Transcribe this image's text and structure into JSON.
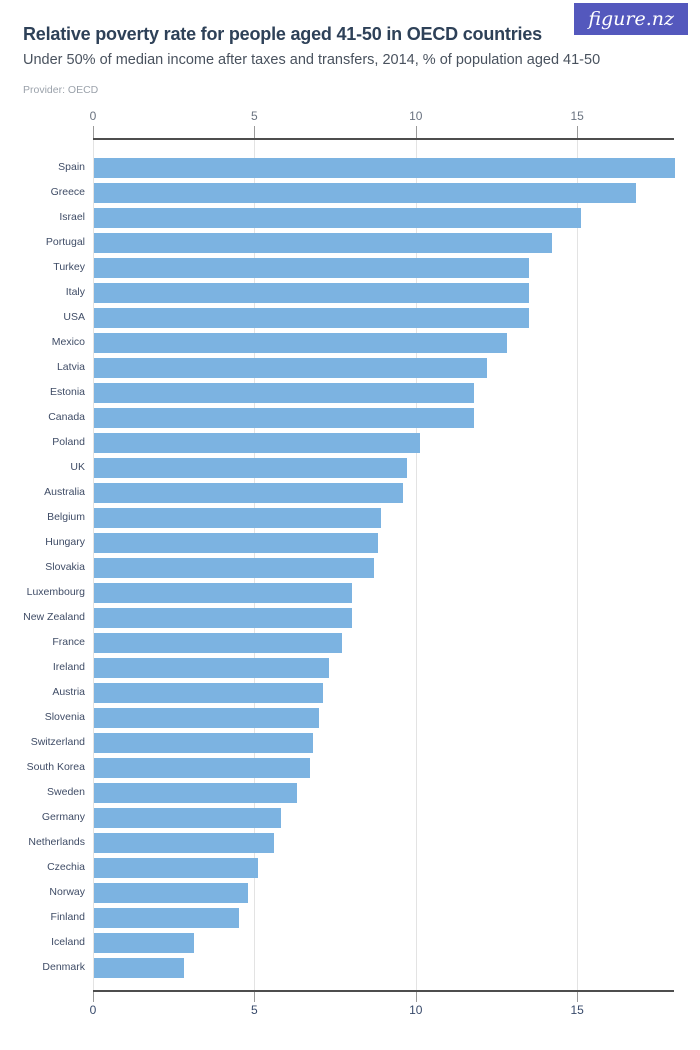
{
  "logo": {
    "text": "figure.nz",
    "background": "#5458bd",
    "text_color": "#ffffff"
  },
  "header": {
    "title": "Relative poverty rate for people aged 41-50 in OECD countries",
    "subtitle": "Under 50% of median income after taxes and transfers, 2014, % of population aged 41-50",
    "provider": "Provider: OECD"
  },
  "chart_data": {
    "type": "bar",
    "orientation": "horizontal",
    "title": "Relative poverty rate for people aged 41-50 in OECD countries",
    "subtitle": "Under 50% of median income after taxes and transfers, 2014, % of population aged 41-50",
    "xlabel": "",
    "ylabel": "",
    "xlim": [
      0,
      18
    ],
    "x_ticks": [
      0,
      5,
      10,
      15
    ],
    "grid": true,
    "legend": false,
    "bar_color": "#7cb3e1",
    "categories": [
      "Spain",
      "Greece",
      "Israel",
      "Portugal",
      "Turkey",
      "Italy",
      "USA",
      "Mexico",
      "Latvia",
      "Estonia",
      "Canada",
      "Poland",
      "UK",
      "Australia",
      "Belgium",
      "Hungary",
      "Slovakia",
      "Luxembourg",
      "New Zealand",
      "France",
      "Ireland",
      "Austria",
      "Slovenia",
      "Switzerland",
      "South Korea",
      "Sweden",
      "Germany",
      "Netherlands",
      "Czechia",
      "Norway",
      "Finland",
      "Iceland",
      "Denmark"
    ],
    "values": [
      18.0,
      16.8,
      15.1,
      14.2,
      13.5,
      13.5,
      13.5,
      12.8,
      12.2,
      11.8,
      11.8,
      10.1,
      9.7,
      9.6,
      8.9,
      8.8,
      8.7,
      8.0,
      8.0,
      7.7,
      7.3,
      7.1,
      7.0,
      6.8,
      6.7,
      6.3,
      5.8,
      5.6,
      5.1,
      4.8,
      4.5,
      3.1,
      2.8
    ]
  }
}
